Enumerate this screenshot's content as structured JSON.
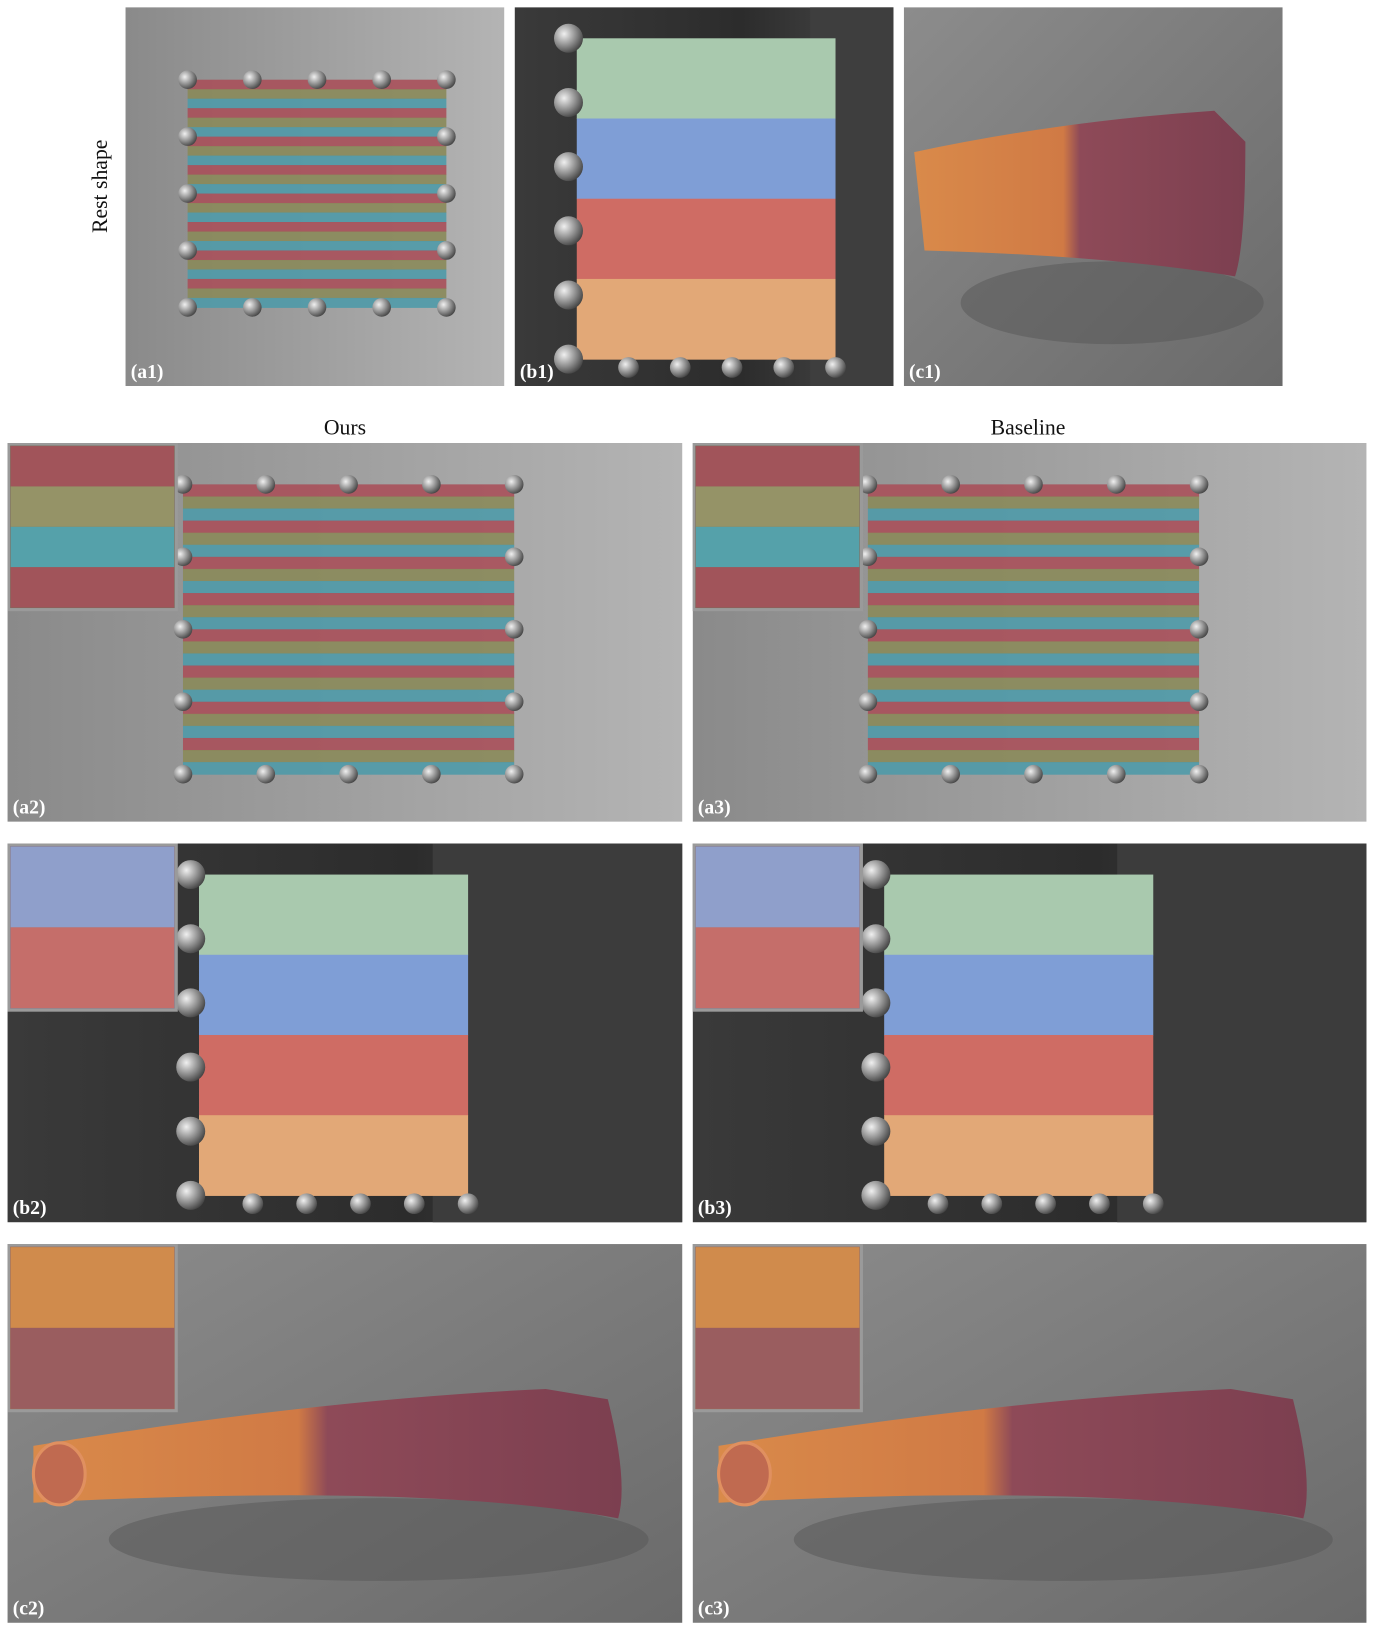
{
  "row_label": "Rest shape",
  "column_headers": [
    "Ours",
    "Baseline"
  ],
  "panels": [
    {
      "label": "(a1)"
    },
    {
      "label": "(b1)"
    },
    {
      "label": "(c1)"
    },
    {
      "label": "(a2)"
    },
    {
      "label": "(a3)"
    },
    {
      "label": "(b2)"
    },
    {
      "label": "(b3)"
    },
    {
      "label": "(c2)"
    },
    {
      "label": "(c3)"
    }
  ]
}
